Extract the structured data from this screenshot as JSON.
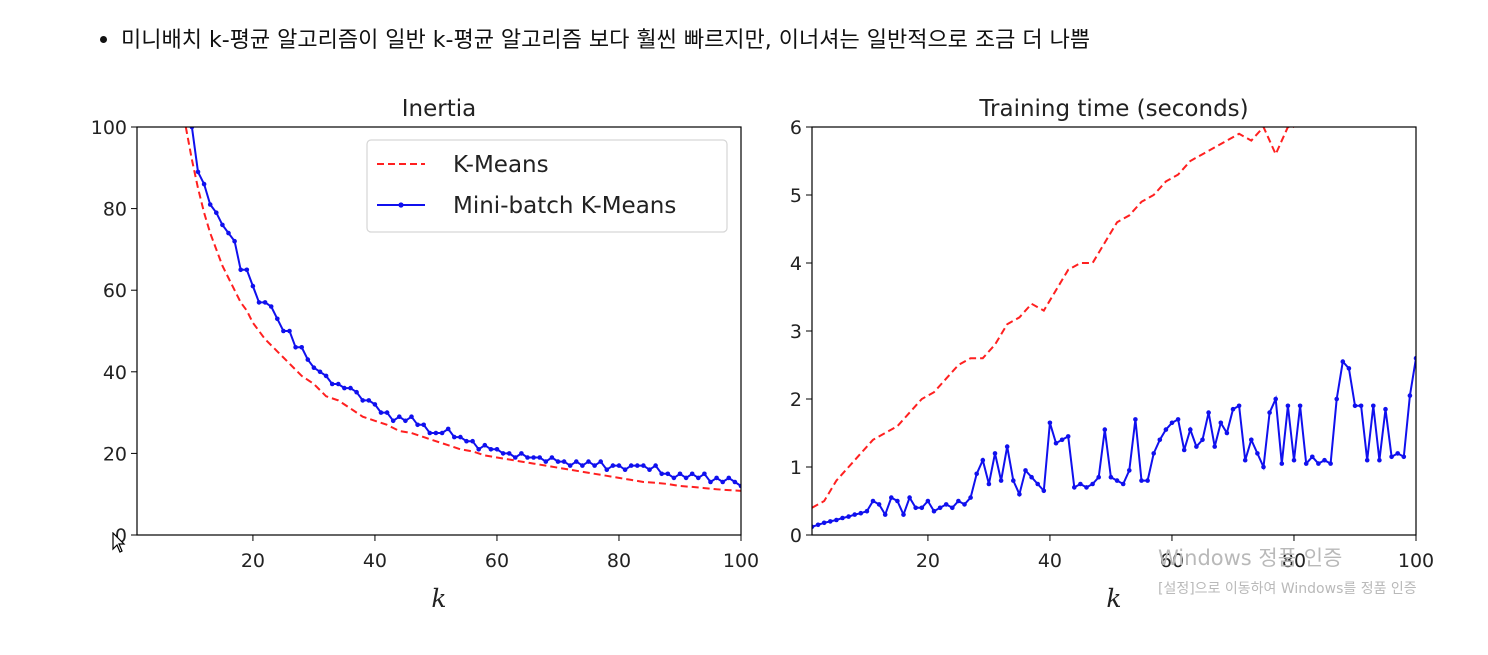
{
  "page": {
    "bullet_text": "미니배치 k-평균 알고리즘이 일반 k-평균 알고리즘 보다 훨씬 빠르지만, 이너셔는 일반적으로 조금 더 나쁨"
  },
  "watermark": {
    "line1": "Windows 정품 인증",
    "line2": "[설정]으로 이동하여 Windows를 정품 인증"
  },
  "colors": {
    "kmeans": "#ff2020",
    "minibatch": "#1010ee",
    "axis": "#000000",
    "watermark": "#b9b9b9"
  },
  "icons": {
    "cursor": "mouse-pointer-icon"
  },
  "chart_data": [
    {
      "type": "line",
      "title": "Inertia",
      "xlabel": "k",
      "ylabel": "",
      "xlim": [
        1,
        100
      ],
      "ylim": [
        0,
        100
      ],
      "xticks": [
        20,
        40,
        60,
        80,
        100
      ],
      "yticks": [
        0,
        20,
        40,
        60,
        80,
        100
      ],
      "legend_position": "top-right",
      "grid": false,
      "series": [
        {
          "name": "K-Means",
          "style": "dashed",
          "x": [
            9,
            10,
            11,
            12,
            13,
            14,
            15,
            16,
            17,
            18,
            19,
            20,
            22,
            24,
            26,
            28,
            30,
            32,
            34,
            36,
            38,
            40,
            42,
            44,
            46,
            48,
            50,
            52,
            54,
            56,
            58,
            60,
            62,
            64,
            66,
            68,
            70,
            72,
            74,
            76,
            78,
            80,
            82,
            84,
            86,
            88,
            90,
            92,
            94,
            96,
            98,
            100
          ],
          "y": [
            100,
            92,
            85,
            79,
            74,
            70,
            66,
            63,
            60,
            57,
            55,
            52,
            48,
            45,
            42,
            39,
            37,
            34,
            33,
            31,
            29,
            28,
            27,
            25.5,
            25,
            24,
            23,
            22,
            21,
            20.5,
            19.5,
            19,
            18.5,
            18,
            17.5,
            17,
            16.5,
            16,
            15.5,
            15,
            14.5,
            14,
            13.5,
            13,
            12.8,
            12.5,
            12,
            11.8,
            11.5,
            11.2,
            11,
            10.8
          ]
        },
        {
          "name": "Mini-batch K-Means",
          "style": "solid-dot",
          "x": [
            10,
            11,
            12,
            13,
            14,
            15,
            16,
            17,
            18,
            19,
            20,
            21,
            22,
            23,
            24,
            25,
            26,
            27,
            28,
            29,
            30,
            31,
            32,
            33,
            34,
            35,
            36,
            37,
            38,
            39,
            40,
            41,
            42,
            43,
            44,
            45,
            46,
            47,
            48,
            49,
            50,
            51,
            52,
            53,
            54,
            55,
            56,
            57,
            58,
            59,
            60,
            61,
            62,
            63,
            64,
            65,
            66,
            67,
            68,
            69,
            70,
            71,
            72,
            73,
            74,
            75,
            76,
            77,
            78,
            79,
            80,
            81,
            82,
            83,
            84,
            85,
            86,
            87,
            88,
            89,
            90,
            91,
            92,
            93,
            94,
            95,
            96,
            97,
            98,
            99,
            100
          ],
          "y": [
            100,
            89,
            86,
            81,
            79,
            76,
            74,
            72,
            65,
            65,
            61,
            57,
            57,
            56,
            53,
            50,
            50,
            46,
            46,
            43,
            41,
            40,
            39,
            37,
            37,
            36,
            36,
            35,
            33,
            33,
            32,
            30,
            30,
            28,
            29,
            28,
            29,
            27,
            27,
            25,
            25,
            25,
            26,
            24,
            24,
            23,
            23,
            21,
            22,
            21,
            21,
            20,
            20,
            19,
            20,
            19,
            19,
            19,
            18,
            19,
            18,
            18,
            17,
            18,
            17,
            18,
            17,
            18,
            16,
            17,
            17,
            16,
            17,
            17,
            17,
            16,
            17,
            15,
            15,
            14,
            15,
            14,
            15,
            14,
            15,
            13,
            14,
            13,
            14,
            13,
            12
          ]
        }
      ]
    },
    {
      "type": "line",
      "title": "Training time (seconds)",
      "xlabel": "k",
      "ylabel": "",
      "xlim": [
        1,
        100
      ],
      "ylim": [
        0,
        6
      ],
      "xticks": [
        20,
        40,
        60,
        80,
        100
      ],
      "yticks": [
        0,
        1,
        2,
        3,
        4,
        5,
        6
      ],
      "grid": false,
      "series": [
        {
          "name": "K-Means",
          "style": "dashed",
          "x": [
            1,
            3,
            5,
            7,
            9,
            11,
            13,
            15,
            17,
            19,
            21,
            23,
            25,
            27,
            29,
            31,
            33,
            35,
            37,
            39,
            41,
            43,
            45,
            47,
            49,
            51,
            53,
            55,
            57,
            59,
            61,
            63,
            65,
            67,
            69,
            71,
            73,
            75,
            77,
            79,
            80
          ],
          "y": [
            0.4,
            0.5,
            0.8,
            1.0,
            1.2,
            1.4,
            1.5,
            1.6,
            1.8,
            2.0,
            2.1,
            2.3,
            2.5,
            2.6,
            2.6,
            2.8,
            3.1,
            3.2,
            3.4,
            3.3,
            3.6,
            3.9,
            4.0,
            4.0,
            4.3,
            4.6,
            4.7,
            4.9,
            5.0,
            5.2,
            5.3,
            5.5,
            5.6,
            5.7,
            5.8,
            5.9,
            5.8,
            6.0,
            5.6,
            6.0,
            6.0
          ]
        },
        {
          "name": "Mini-batch K-Means",
          "style": "solid-dot",
          "x": [
            1,
            2,
            3,
            4,
            5,
            6,
            7,
            8,
            9,
            10,
            11,
            12,
            13,
            14,
            15,
            16,
            17,
            18,
            19,
            20,
            21,
            22,
            23,
            24,
            25,
            26,
            27,
            28,
            29,
            30,
            31,
            32,
            33,
            34,
            35,
            36,
            37,
            38,
            39,
            40,
            41,
            42,
            43,
            44,
            45,
            46,
            47,
            48,
            49,
            50,
            51,
            52,
            53,
            54,
            55,
            56,
            57,
            58,
            59,
            60,
            61,
            62,
            63,
            64,
            65,
            66,
            67,
            68,
            69,
            70,
            71,
            72,
            73,
            74,
            75,
            76,
            77,
            78,
            79,
            80,
            81,
            82,
            83,
            84,
            85,
            86,
            87,
            88,
            89,
            90,
            91,
            92,
            93,
            94,
            95,
            96,
            97,
            98,
            99,
            100
          ],
          "y": [
            0.12,
            0.15,
            0.18,
            0.2,
            0.22,
            0.25,
            0.27,
            0.3,
            0.32,
            0.35,
            0.5,
            0.45,
            0.3,
            0.55,
            0.5,
            0.3,
            0.55,
            0.4,
            0.4,
            0.5,
            0.35,
            0.4,
            0.45,
            0.4,
            0.5,
            0.45,
            0.55,
            0.9,
            1.1,
            0.75,
            1.2,
            0.8,
            1.3,
            0.8,
            0.6,
            0.95,
            0.85,
            0.75,
            0.65,
            1.65,
            1.35,
            1.4,
            1.45,
            0.7,
            0.75,
            0.7,
            0.75,
            0.85,
            1.55,
            0.85,
            0.8,
            0.75,
            0.95,
            1.7,
            0.8,
            0.8,
            1.2,
            1.4,
            1.55,
            1.65,
            1.7,
            1.25,
            1.55,
            1.3,
            1.4,
            1.8,
            1.3,
            1.65,
            1.5,
            1.85,
            1.9,
            1.1,
            1.4,
            1.2,
            1.0,
            1.8,
            2.0,
            1.05,
            1.9,
            1.1,
            1.9,
            1.05,
            1.15,
            1.05,
            1.1,
            1.05,
            2.0,
            2.55,
            2.45,
            1.9,
            1.9,
            1.1,
            1.9,
            1.1,
            1.85,
            1.15,
            1.2,
            1.15,
            2.05,
            2.6
          ]
        }
      ]
    }
  ]
}
